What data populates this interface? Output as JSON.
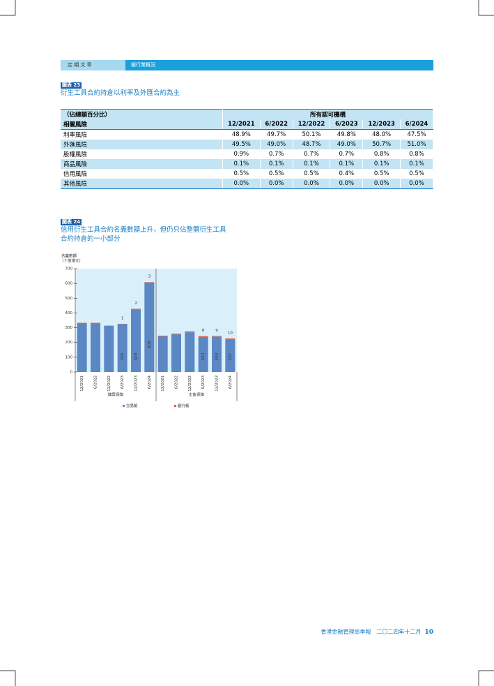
{
  "header": {
    "section": "定 期 文 章",
    "topic": "銀行業概況"
  },
  "figure23": {
    "label": "圖表 23",
    "title": "衍生工具合約持倉以利率及外匯合約為主",
    "table": {
      "corner": "（佔總額百分比）",
      "group": "所有認可機構",
      "row_header": "相關風險",
      "columns": [
        "12/2021",
        "6/2022",
        "12/2022",
        "6/2023",
        "12/2023",
        "6/2024"
      ],
      "rows": [
        [
          "利率風險",
          "48.9%",
          "49.7%",
          "50.1%",
          "49.8%",
          "48.0%",
          "47.5%"
        ],
        [
          "外匯風險",
          "49.5%",
          "49.0%",
          "48.7%",
          "49.0%",
          "50.7%",
          "51.0%"
        ],
        [
          "股權風險",
          "0.9%",
          "0.7%",
          "0.7%",
          "0.7%",
          "0.8%",
          "0.8%"
        ],
        [
          "商品風險",
          "0.1%",
          "0.1%",
          "0.1%",
          "0.1%",
          "0.1%",
          "0.1%"
        ],
        [
          "信用風險",
          "0.5%",
          "0.5%",
          "0.5%",
          "0.4%",
          "0.5%",
          "0.5%"
        ],
        [
          "其他風險",
          "0.0%",
          "0.0%",
          "0.0%",
          "0.0%",
          "0.0%",
          "0.0%"
        ]
      ]
    }
  },
  "figure24": {
    "label": "圖表 24",
    "title": [
      "信用衍生工具合約名義數額上升，但仍只佔整體衍生工具",
      "合約持倉的一小部分"
    ]
  },
  "chart_data": {
    "type": "stacked_bar",
    "y_label": [
      "名義數額",
      "（十億港元）"
    ],
    "categories": [
      "12/2021",
      "6/2022",
      "12/2022",
      "6/2023",
      "12/2023",
      "6/2024",
      "12/2021",
      "6/2022",
      "12/2022",
      "6/2023",
      "12/2023",
      "6/2024"
    ],
    "group_labels": [
      "購買保障",
      "出售保障"
    ],
    "series": [
      {
        "name": "交易帳",
        "color": "#5b87c5",
        "values": [
          331,
          331,
          312,
          324,
          425,
          606,
          241,
          255,
          269,
          237,
          240,
          222
        ]
      },
      {
        "name": "銀行帳",
        "color": "#e0633f",
        "values": [
          2,
          2,
          2,
          2,
          3,
          3,
          5,
          5,
          6,
          6,
          4,
          5
        ]
      }
    ],
    "total_labels": [
      null,
      null,
      null,
      326,
      428,
      609,
      null,
      null,
      null,
      243,
      244,
      227
    ],
    "note_markers": [
      null,
      null,
      null,
      "1",
      "2",
      "3",
      null,
      null,
      null,
      "8",
      "9",
      "10"
    ],
    "ylim": [
      0,
      700
    ],
    "yticks": [
      0,
      100,
      200,
      300,
      400,
      500,
      600,
      700
    ]
  },
  "footer": {
    "publication": "香港金融管理局季報　二〇二四年十二月",
    "page": "10"
  }
}
